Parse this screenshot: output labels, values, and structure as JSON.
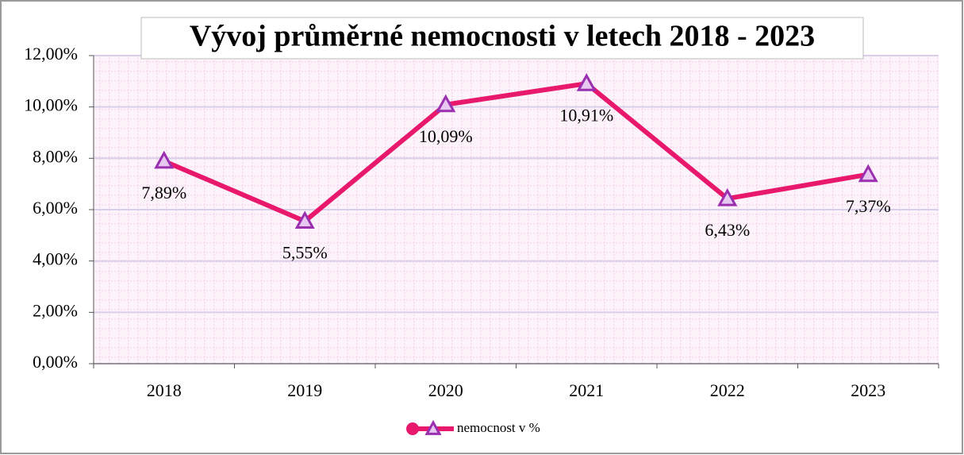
{
  "chart_data": {
    "type": "line",
    "title": "Vývoj průměrné nemocnosti v letech  2018 - 2023",
    "categories": [
      "2018",
      "2019",
      "2020",
      "2021",
      "2022",
      "2023"
    ],
    "series": [
      {
        "name": "nemocnost v %",
        "color": "#e8186c",
        "marker_color": "#9a2fb0",
        "values": [
          7.89,
          5.55,
          10.09,
          10.91,
          6.43,
          7.37
        ],
        "value_labels": [
          "7,89%",
          "5,55%",
          "10,09%",
          "10,91%",
          "6,43%",
          "7,37%"
        ]
      }
    ],
    "ylim": [
      0,
      12
    ],
    "yticks": [
      {
        "value": 0,
        "label": "0,00%"
      },
      {
        "value": 2,
        "label": "2,00%"
      },
      {
        "value": 4,
        "label": "4,00%"
      },
      {
        "value": 6,
        "label": "6,00%"
      },
      {
        "value": 8,
        "label": "8,00%"
      },
      {
        "value": 10,
        "label": "10,00%"
      },
      {
        "value": 12,
        "label": "12,00%"
      }
    ],
    "grid": true,
    "legend": "bottom"
  }
}
